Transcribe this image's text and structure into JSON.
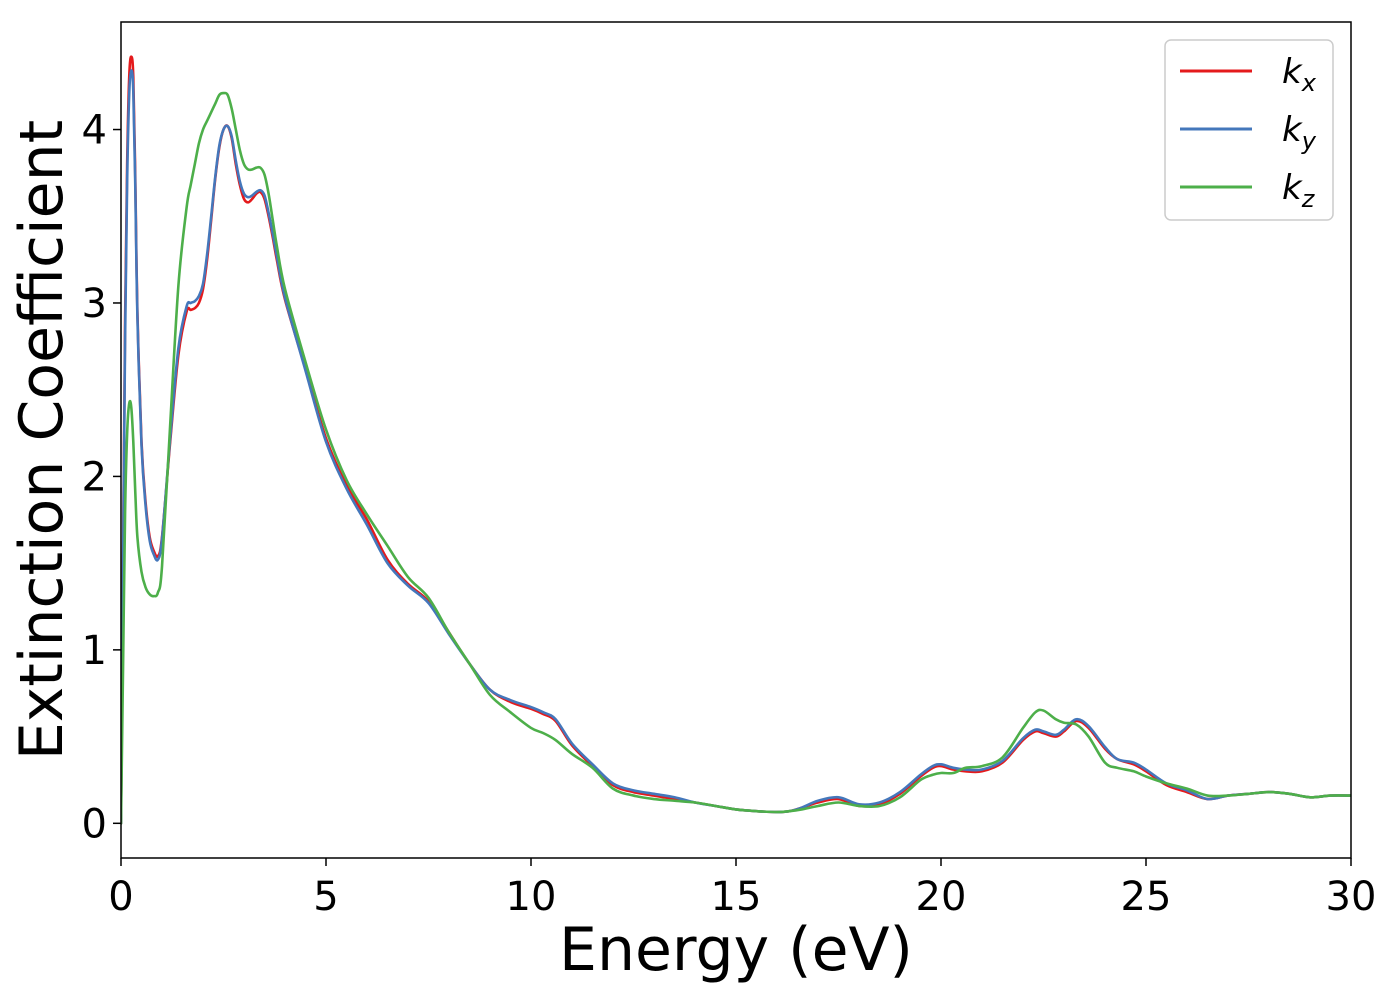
{
  "chart_data": {
    "type": "line",
    "title": "",
    "xlabel": "Energy (eV)",
    "ylabel": "Extinction Coefficient",
    "xlim": [
      0,
      30
    ],
    "ylim": [
      -0.2,
      4.62
    ],
    "xticks": [
      0,
      5,
      10,
      15,
      20,
      25,
      30
    ],
    "yticks": [
      0,
      1,
      2,
      3,
      4
    ],
    "grid": false,
    "legend_position": "top-right",
    "series": [
      {
        "name": "k",
        "subscript": "x",
        "color": "#e41a1c",
        "x": [
          0,
          0.05,
          0.1,
          0.15,
          0.2,
          0.25,
          0.3,
          0.35,
          0.4,
          0.5,
          0.6,
          0.7,
          0.8,
          0.9,
          1.0,
          1.2,
          1.4,
          1.6,
          1.7,
          1.8,
          1.9,
          2.0,
          2.1,
          2.2,
          2.3,
          2.4,
          2.5,
          2.6,
          2.7,
          2.8,
          2.9,
          3.0,
          3.1,
          3.2,
          3.3,
          3.4,
          3.5,
          3.6,
          3.7,
          3.8,
          4.0,
          4.5,
          5.0,
          5.5,
          6.0,
          6.5,
          7.0,
          7.5,
          8.0,
          8.5,
          9.0,
          9.5,
          10.0,
          10.3,
          10.6,
          11.0,
          11.5,
          12.0,
          12.5,
          13.0,
          13.5,
          14.0,
          14.5,
          15.0,
          15.5,
          16.0,
          16.3,
          16.6,
          17.0,
          17.5,
          18.0,
          18.5,
          19.0,
          19.5,
          19.8,
          20.0,
          20.3,
          20.6,
          21.0,
          21.5,
          22.0,
          22.3,
          22.5,
          22.8,
          23.0,
          23.3,
          23.6,
          24.0,
          24.3,
          24.7,
          25.0,
          25.5,
          26.0,
          26.5,
          27.0,
          27.5,
          28.0,
          28.5,
          29.0,
          29.5,
          30.0
        ],
        "y": [
          0,
          1.5,
          2.9,
          3.8,
          4.3,
          4.42,
          4.3,
          3.7,
          2.95,
          2.2,
          1.85,
          1.65,
          1.57,
          1.54,
          1.65,
          2.2,
          2.7,
          2.95,
          2.96,
          2.97,
          3.0,
          3.08,
          3.25,
          3.48,
          3.72,
          3.9,
          4.0,
          4.02,
          3.95,
          3.8,
          3.68,
          3.6,
          3.58,
          3.6,
          3.63,
          3.64,
          3.6,
          3.5,
          3.38,
          3.25,
          3.02,
          2.62,
          2.22,
          1.95,
          1.75,
          1.52,
          1.38,
          1.28,
          1.1,
          0.92,
          0.77,
          0.7,
          0.66,
          0.63,
          0.59,
          0.45,
          0.33,
          0.22,
          0.18,
          0.16,
          0.14,
          0.12,
          0.1,
          0.08,
          0.07,
          0.065,
          0.07,
          0.09,
          0.12,
          0.14,
          0.1,
          0.11,
          0.17,
          0.27,
          0.32,
          0.33,
          0.31,
          0.3,
          0.3,
          0.35,
          0.48,
          0.53,
          0.52,
          0.5,
          0.53,
          0.59,
          0.55,
          0.43,
          0.37,
          0.34,
          0.3,
          0.22,
          0.18,
          0.14,
          0.16,
          0.17,
          0.18,
          0.17,
          0.15,
          0.16,
          0.16
        ]
      },
      {
        "name": "k",
        "subscript": "y",
        "color": "#4477bb",
        "x": [
          0,
          0.05,
          0.1,
          0.15,
          0.2,
          0.25,
          0.3,
          0.35,
          0.4,
          0.5,
          0.6,
          0.7,
          0.8,
          0.9,
          1.0,
          1.2,
          1.4,
          1.6,
          1.7,
          1.8,
          1.9,
          2.0,
          2.1,
          2.2,
          2.3,
          2.4,
          2.5,
          2.6,
          2.7,
          2.8,
          2.9,
          3.0,
          3.1,
          3.2,
          3.3,
          3.4,
          3.5,
          3.6,
          3.7,
          3.8,
          4.0,
          4.5,
          5.0,
          5.5,
          6.0,
          6.5,
          7.0,
          7.5,
          8.0,
          8.5,
          9.0,
          9.5,
          10.0,
          10.3,
          10.6,
          11.0,
          11.5,
          12.0,
          12.5,
          13.0,
          13.5,
          14.0,
          14.5,
          15.0,
          15.5,
          16.0,
          16.3,
          16.6,
          17.0,
          17.5,
          18.0,
          18.5,
          19.0,
          19.5,
          19.8,
          20.0,
          20.3,
          20.6,
          21.0,
          21.5,
          22.0,
          22.3,
          22.5,
          22.8,
          23.0,
          23.3,
          23.6,
          24.0,
          24.3,
          24.7,
          25.0,
          25.5,
          26.0,
          26.5,
          27.0,
          27.5,
          28.0,
          28.5,
          29.0,
          29.5,
          30.0
        ],
        "y": [
          0,
          1.45,
          2.8,
          3.7,
          4.2,
          4.34,
          4.22,
          3.65,
          2.92,
          2.18,
          1.83,
          1.63,
          1.55,
          1.52,
          1.64,
          2.22,
          2.74,
          2.98,
          3.0,
          3.01,
          3.04,
          3.11,
          3.28,
          3.5,
          3.73,
          3.91,
          4.0,
          4.02,
          3.96,
          3.82,
          3.7,
          3.63,
          3.61,
          3.62,
          3.64,
          3.65,
          3.62,
          3.52,
          3.4,
          3.27,
          3.03,
          2.61,
          2.2,
          1.93,
          1.72,
          1.5,
          1.37,
          1.27,
          1.09,
          0.92,
          0.77,
          0.71,
          0.67,
          0.64,
          0.6,
          0.46,
          0.34,
          0.23,
          0.19,
          0.17,
          0.15,
          0.12,
          0.1,
          0.08,
          0.07,
          0.065,
          0.07,
          0.09,
          0.13,
          0.15,
          0.11,
          0.12,
          0.18,
          0.28,
          0.33,
          0.34,
          0.32,
          0.31,
          0.31,
          0.36,
          0.49,
          0.54,
          0.53,
          0.51,
          0.54,
          0.6,
          0.56,
          0.44,
          0.37,
          0.35,
          0.31,
          0.23,
          0.19,
          0.14,
          0.16,
          0.17,
          0.18,
          0.17,
          0.15,
          0.16,
          0.16
        ]
      },
      {
        "name": "k",
        "subscript": "z",
        "color": "#4daf4a",
        "x": [
          0,
          0.05,
          0.1,
          0.15,
          0.2,
          0.25,
          0.3,
          0.35,
          0.4,
          0.5,
          0.6,
          0.7,
          0.8,
          0.9,
          1.0,
          1.2,
          1.4,
          1.6,
          1.7,
          1.8,
          1.9,
          2.0,
          2.1,
          2.2,
          2.3,
          2.4,
          2.5,
          2.6,
          2.7,
          2.8,
          2.9,
          3.0,
          3.1,
          3.2,
          3.3,
          3.4,
          3.5,
          3.6,
          3.7,
          3.8,
          4.0,
          4.5,
          5.0,
          5.5,
          6.0,
          6.5,
          7.0,
          7.5,
          8.0,
          8.5,
          9.0,
          9.5,
          10.0,
          10.3,
          10.6,
          11.0,
          11.5,
          12.0,
          12.5,
          13.0,
          13.5,
          14.0,
          14.5,
          15.0,
          15.5,
          16.0,
          16.3,
          16.6,
          17.0,
          17.5,
          18.0,
          18.5,
          19.0,
          19.5,
          19.8,
          20.0,
          20.3,
          20.6,
          21.0,
          21.5,
          22.0,
          22.3,
          22.5,
          22.8,
          23.0,
          23.3,
          23.6,
          24.0,
          24.3,
          24.7,
          25.0,
          25.5,
          26.0,
          26.5,
          27.0,
          27.5,
          28.0,
          28.5,
          29.0,
          29.5,
          30.0
        ],
        "y": [
          0,
          0.9,
          1.8,
          2.25,
          2.42,
          2.4,
          2.2,
          1.9,
          1.65,
          1.45,
          1.36,
          1.32,
          1.31,
          1.33,
          1.48,
          2.3,
          3.1,
          3.55,
          3.68,
          3.8,
          3.92,
          4.0,
          4.05,
          4.1,
          4.15,
          4.2,
          4.21,
          4.2,
          4.12,
          4.0,
          3.88,
          3.8,
          3.77,
          3.77,
          3.78,
          3.78,
          3.74,
          3.63,
          3.48,
          3.33,
          3.08,
          2.66,
          2.27,
          1.98,
          1.78,
          1.6,
          1.42,
          1.3,
          1.1,
          0.92,
          0.74,
          0.64,
          0.55,
          0.52,
          0.48,
          0.4,
          0.32,
          0.2,
          0.16,
          0.14,
          0.13,
          0.12,
          0.1,
          0.08,
          0.07,
          0.065,
          0.07,
          0.08,
          0.1,
          0.12,
          0.1,
          0.1,
          0.15,
          0.25,
          0.28,
          0.29,
          0.29,
          0.32,
          0.33,
          0.38,
          0.55,
          0.64,
          0.65,
          0.6,
          0.58,
          0.57,
          0.5,
          0.35,
          0.32,
          0.3,
          0.27,
          0.23,
          0.2,
          0.16,
          0.16,
          0.17,
          0.18,
          0.17,
          0.15,
          0.16,
          0.16
        ]
      }
    ]
  }
}
